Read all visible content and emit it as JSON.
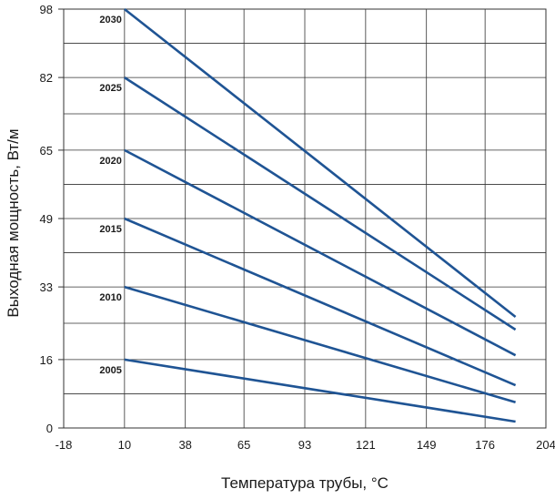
{
  "chart_data": {
    "type": "line",
    "title": "",
    "xlabel": "Температура трубы, °C",
    "ylabel": "Выходная мощность, Вт/м",
    "x_ticks": [
      "-18",
      "10",
      "38",
      "65",
      "93",
      "121",
      "149",
      "176",
      "204"
    ],
    "y_ticks": [
      "0",
      "16",
      "33",
      "49",
      "65",
      "82",
      "98"
    ],
    "xlim": [
      -18,
      204
    ],
    "ylim": [
      0,
      98
    ],
    "grid": true,
    "legend": "inline labels at line start",
    "colors": {
      "line": "#1f5494",
      "grid": "#333333",
      "text": "#1a1a1a"
    },
    "series": [
      {
        "name": "2030",
        "x": [
          10,
          190
        ],
        "y": [
          98,
          26
        ]
      },
      {
        "name": "2025",
        "x": [
          10,
          190
        ],
        "y": [
          82,
          23
        ]
      },
      {
        "name": "2020",
        "x": [
          10,
          190
        ],
        "y": [
          65,
          17
        ]
      },
      {
        "name": "2015",
        "x": [
          10,
          190
        ],
        "y": [
          49,
          10
        ]
      },
      {
        "name": "2010",
        "x": [
          10,
          190
        ],
        "y": [
          33,
          6
        ]
      },
      {
        "name": "2005",
        "x": [
          10,
          190
        ],
        "y": [
          16,
          1.5
        ]
      }
    ]
  }
}
